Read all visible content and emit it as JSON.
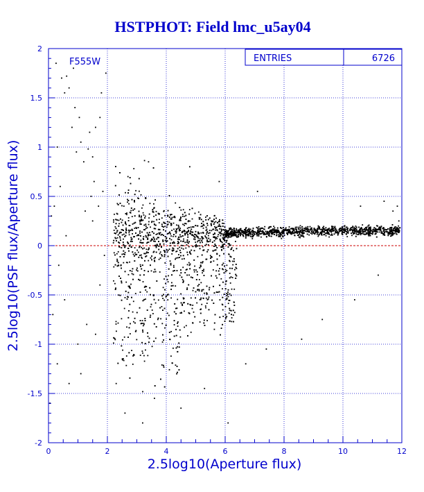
{
  "colors": {
    "frame": "#0000cc",
    "grid": "#0000cc",
    "points": "#000000",
    "zero_line": "#cc0000",
    "background": "#ffffff"
  },
  "chart_data": {
    "type": "scatter",
    "title": "HSTPHOT: Field lmc_u5ay04",
    "xlabel": "2.5log10(Aperture flux)",
    "ylabel": "2.5log10(PSF flux/Aperture flux)",
    "xlim": [
      0,
      12
    ],
    "ylim": [
      -2,
      2
    ],
    "x_ticks": [
      0,
      2,
      4,
      6,
      8,
      10,
      12
    ],
    "y_ticks": [
      -2,
      -1.5,
      -1,
      -0.5,
      0,
      0.5,
      1,
      1.5,
      2
    ],
    "x_tick_labels": [
      "0",
      "2",
      "4",
      "6",
      "8",
      "10",
      "12"
    ],
    "y_tick_labels": [
      "-2",
      "-1.5",
      "-1",
      "-0.5",
      "0",
      "0.5",
      "1",
      "1.5",
      "2"
    ],
    "grid": true,
    "reference_line": {
      "y": 0,
      "style": "dashed"
    },
    "annotation": "F555W",
    "stats_box": {
      "label": "ENTRIES",
      "value": "6726",
      "position": "top-right"
    },
    "entries": 6726,
    "trend": [
      {
        "x": 2.5,
        "y": 0.1
      },
      {
        "x": 4,
        "y": 0.12
      },
      {
        "x": 6,
        "y": 0.13
      },
      {
        "x": 8,
        "y": 0.14
      },
      {
        "x": 10,
        "y": 0.15
      },
      {
        "x": 12,
        "y": 0.15
      }
    ],
    "points": [
      {
        "x": 0.26,
        "y": 1.85
      },
      {
        "x": 0.45,
        "y": 1.7
      },
      {
        "x": 0.62,
        "y": 1.72
      },
      {
        "x": 0.7,
        "y": 1.6
      },
      {
        "x": 0.9,
        "y": 1.4
      },
      {
        "x": 0.8,
        "y": 1.2
      },
      {
        "x": 1.1,
        "y": 1.05
      },
      {
        "x": 1.35,
        "y": 0.98
      },
      {
        "x": 1.5,
        "y": 0.9
      },
      {
        "x": 1.2,
        "y": 0.85
      },
      {
        "x": 0.95,
        "y": 0.95
      },
      {
        "x": 1.6,
        "y": 1.2
      },
      {
        "x": 1.75,
        "y": 1.3
      },
      {
        "x": 1.4,
        "y": 1.15
      },
      {
        "x": 1.05,
        "y": 1.3
      },
      {
        "x": 0.55,
        "y": 1.55
      },
      {
        "x": 0.3,
        "y": 1.0
      },
      {
        "x": 0.4,
        "y": 0.6
      },
      {
        "x": 0.2,
        "y": 0.4
      },
      {
        "x": 0.1,
        "y": 0.3
      },
      {
        "x": 0.6,
        "y": 0.1
      },
      {
        "x": 0.35,
        "y": -0.2
      },
      {
        "x": 0.55,
        "y": -0.55
      },
      {
        "x": 0.15,
        "y": -0.7
      },
      {
        "x": 0.3,
        "y": -1.2
      },
      {
        "x": 0.05,
        "y": -1.6
      },
      {
        "x": 0.7,
        "y": -1.4
      },
      {
        "x": 1.0,
        "y": -1.0
      },
      {
        "x": 1.3,
        "y": -0.8
      },
      {
        "x": 1.1,
        "y": -1.3
      },
      {
        "x": 1.5,
        "y": 0.25
      },
      {
        "x": 1.25,
        "y": 0.35
      },
      {
        "x": 1.7,
        "y": 0.4
      },
      {
        "x": 1.85,
        "y": 0.55
      },
      {
        "x": 1.55,
        "y": 0.65
      },
      {
        "x": 1.8,
        "y": 1.55
      },
      {
        "x": 1.95,
        "y": 1.75
      },
      {
        "x": 0.85,
        "y": 1.8
      },
      {
        "x": 1.45,
        "y": 0.5
      },
      {
        "x": 1.9,
        "y": -0.1
      },
      {
        "x": 1.75,
        "y": -0.4
      },
      {
        "x": 1.6,
        "y": -0.9
      },
      {
        "x": 2.3,
        "y": -1.4
      },
      {
        "x": 2.6,
        "y": -1.7
      },
      {
        "x": 3.2,
        "y": -1.8
      },
      {
        "x": 3.6,
        "y": -1.55
      },
      {
        "x": 4.5,
        "y": -1.65
      },
      {
        "x": 5.3,
        "y": -1.45
      },
      {
        "x": 6.1,
        "y": -1.8
      },
      {
        "x": 6.7,
        "y": -1.2
      },
      {
        "x": 7.4,
        "y": -1.05
      },
      {
        "x": 8.6,
        "y": -0.95
      },
      {
        "x": 9.3,
        "y": -0.75
      },
      {
        "x": 10.4,
        "y": -0.55
      },
      {
        "x": 11.2,
        "y": -0.3
      },
      {
        "x": 11.7,
        "y": 0.35
      },
      {
        "x": 11.85,
        "y": 0.4
      },
      {
        "x": 11.9,
        "y": 0.25
      },
      {
        "x": 10.6,
        "y": 0.4
      },
      {
        "x": 11.4,
        "y": 0.45
      },
      {
        "x": 7.1,
        "y": 0.55
      },
      {
        "x": 5.8,
        "y": 0.65
      },
      {
        "x": 4.8,
        "y": 0.8
      },
      {
        "x": 3.4,
        "y": 0.85
      },
      {
        "x": 2.9,
        "y": 0.78
      },
      {
        "x": 2.7,
        "y": 0.7
      }
    ]
  }
}
